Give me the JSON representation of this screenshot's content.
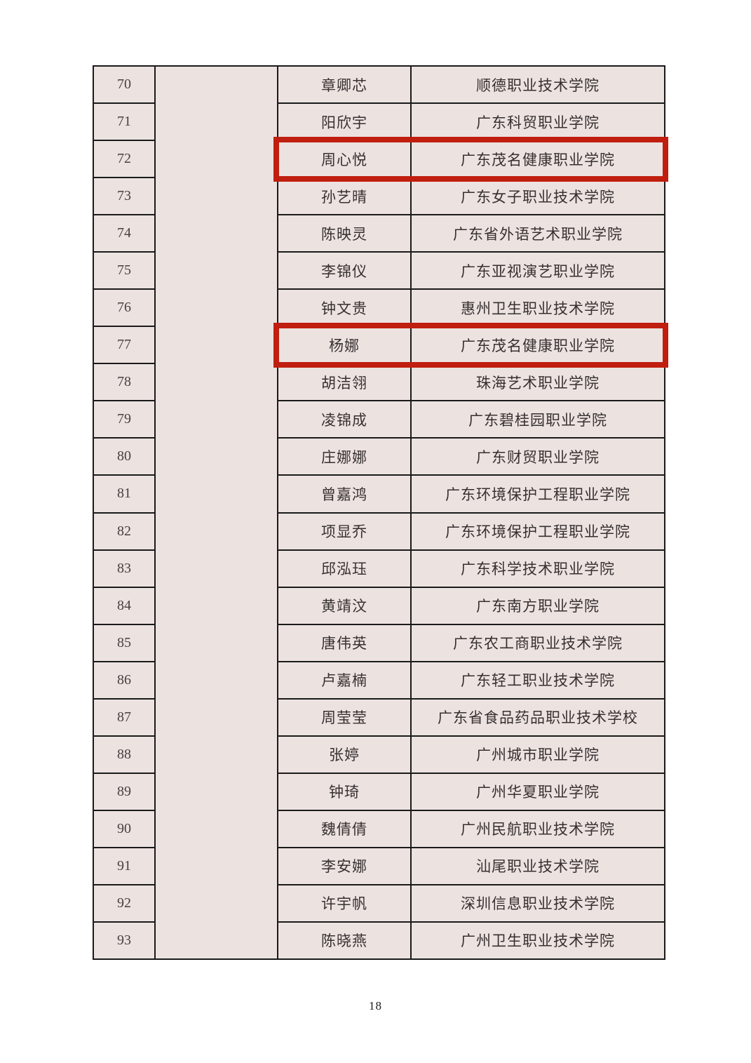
{
  "page": {
    "number": "18"
  },
  "colors": {
    "cell_bg": "#ece3e1",
    "grid_line": "#1a1a1a",
    "text": "#363030",
    "highlight": "#c01e0e"
  },
  "table": {
    "group_cell": "",
    "highlighted_row_numbers": [
      "72",
      "77"
    ],
    "rows": [
      {
        "no": "70",
        "name": "章卿芯",
        "school": "顺德职业技术学院"
      },
      {
        "no": "71",
        "name": "阳欣宇",
        "school": "广东科贸职业学院"
      },
      {
        "no": "72",
        "name": "周心悦",
        "school": "广东茂名健康职业学院"
      },
      {
        "no": "73",
        "name": "孙艺晴",
        "school": "广东女子职业技术学院"
      },
      {
        "no": "74",
        "name": "陈映灵",
        "school": "广东省外语艺术职业学院"
      },
      {
        "no": "75",
        "name": "李锦仪",
        "school": "广东亚视演艺职业学院"
      },
      {
        "no": "76",
        "name": "钟文贵",
        "school": "惠州卫生职业技术学院"
      },
      {
        "no": "77",
        "name": "杨娜",
        "school": "广东茂名健康职业学院"
      },
      {
        "no": "78",
        "name": "胡洁翎",
        "school": "珠海艺术职业学院"
      },
      {
        "no": "79",
        "name": "凌锦成",
        "school": "广东碧桂园职业学院"
      },
      {
        "no": "80",
        "name": "庄娜娜",
        "school": "广东财贸职业学院"
      },
      {
        "no": "81",
        "name": "曾嘉鸿",
        "school": "广东环境保护工程职业学院"
      },
      {
        "no": "82",
        "name": "项显乔",
        "school": "广东环境保护工程职业学院"
      },
      {
        "no": "83",
        "name": "邱泓珏",
        "school": "广东科学技术职业学院"
      },
      {
        "no": "84",
        "name": "黄靖汶",
        "school": "广东南方职业学院"
      },
      {
        "no": "85",
        "name": "唐伟英",
        "school": "广东农工商职业技术学院"
      },
      {
        "no": "86",
        "name": "卢嘉楠",
        "school": "广东轻工职业技术学院"
      },
      {
        "no": "87",
        "name": "周莹莹",
        "school": "广东省食品药品职业技术学校"
      },
      {
        "no": "88",
        "name": "张婷",
        "school": "广州城市职业学院"
      },
      {
        "no": "89",
        "name": "钟琦",
        "school": "广州华夏职业学院"
      },
      {
        "no": "90",
        "name": "魏倩倩",
        "school": "广州民航职业技术学院"
      },
      {
        "no": "91",
        "name": "李安娜",
        "school": "汕尾职业技术学院"
      },
      {
        "no": "92",
        "name": "许宇帆",
        "school": "深圳信息职业技术学院"
      },
      {
        "no": "93",
        "name": "陈晓燕",
        "school": "广州卫生职业技术学院"
      }
    ]
  }
}
